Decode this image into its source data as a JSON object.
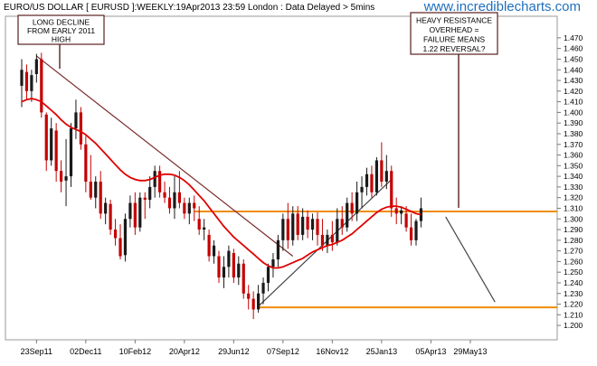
{
  "chart_data": {
    "type": "candlestick",
    "title": "EURO/US DOLLAR [ EURUSD ]:WEEKLY:19Apr2013 23:59 London : Data Delayed > 5mins",
    "watermark": "www.incrediblecharts.com",
    "x_ticks": [
      {
        "label": "23Sep11",
        "i": 3
      },
      {
        "label": "02Dec11",
        "i": 13
      },
      {
        "label": "10Feb12",
        "i": 23
      },
      {
        "label": "20Apr12",
        "i": 33
      },
      {
        "label": "29Jun12",
        "i": 43
      },
      {
        "label": "07Sep12",
        "i": 53
      },
      {
        "label": "16Nov12",
        "i": 63
      },
      {
        "label": "25Jan13",
        "i": 73
      },
      {
        "label": "05Apr13",
        "i": 83
      },
      {
        "label": "29May13",
        "i": 91
      }
    ],
    "y_ticks": [
      "1.200",
      "1.210",
      "1.220",
      "1.230",
      "1.240",
      "1.250",
      "1.260",
      "1.270",
      "1.280",
      "1.290",
      "1.300",
      "1.310",
      "1.320",
      "1.330",
      "1.340",
      "1.350",
      "1.360",
      "1.370",
      "1.380",
      "1.390",
      "1.400",
      "1.410",
      "1.420",
      "1.430",
      "1.440",
      "1.450",
      "1.460",
      "1.470"
    ],
    "ylim": [
      1.195,
      1.475
    ],
    "candles": [
      {
        "o": 1.425,
        "h": 1.45,
        "l": 1.405,
        "c": 1.44
      },
      {
        "o": 1.438,
        "h": 1.445,
        "l": 1.412,
        "c": 1.42
      },
      {
        "o": 1.42,
        "h": 1.44,
        "l": 1.41,
        "c": 1.435
      },
      {
        "o": 1.436,
        "h": 1.455,
        "l": 1.428,
        "c": 1.45
      },
      {
        "o": 1.45,
        "h": 1.456,
        "l": 1.395,
        "c": 1.4
      },
      {
        "o": 1.398,
        "h": 1.4,
        "l": 1.345,
        "c": 1.355
      },
      {
        "o": 1.355,
        "h": 1.395,
        "l": 1.35,
        "c": 1.385
      },
      {
        "o": 1.383,
        "h": 1.39,
        "l": 1.335,
        "c": 1.345
      },
      {
        "o": 1.345,
        "h": 1.355,
        "l": 1.325,
        "c": 1.335
      },
      {
        "o": 1.336,
        "h": 1.375,
        "l": 1.312,
        "c": 1.34
      },
      {
        "o": 1.34,
        "h": 1.39,
        "l": 1.33,
        "c": 1.385
      },
      {
        "o": 1.385,
        "h": 1.412,
        "l": 1.375,
        "c": 1.4
      },
      {
        "o": 1.4,
        "h": 1.405,
        "l": 1.365,
        "c": 1.37
      },
      {
        "o": 1.37,
        "h": 1.378,
        "l": 1.325,
        "c": 1.335
      },
      {
        "o": 1.335,
        "h": 1.36,
        "l": 1.318,
        "c": 1.32
      },
      {
        "o": 1.32,
        "h": 1.34,
        "l": 1.31,
        "c": 1.335
      },
      {
        "o": 1.335,
        "h": 1.345,
        "l": 1.3,
        "c": 1.305
      },
      {
        "o": 1.305,
        "h": 1.32,
        "l": 1.295,
        "c": 1.315
      },
      {
        "o": 1.314,
        "h": 1.318,
        "l": 1.285,
        "c": 1.29
      },
      {
        "o": 1.29,
        "h": 1.3,
        "l": 1.275,
        "c": 1.282
      },
      {
        "o": 1.282,
        "h": 1.295,
        "l": 1.262,
        "c": 1.265
      },
      {
        "o": 1.266,
        "h": 1.305,
        "l": 1.26,
        "c": 1.3
      },
      {
        "o": 1.3,
        "h": 1.322,
        "l": 1.292,
        "c": 1.315
      },
      {
        "o": 1.315,
        "h": 1.325,
        "l": 1.285,
        "c": 1.292
      },
      {
        "o": 1.292,
        "h": 1.325,
        "l": 1.288,
        "c": 1.32
      },
      {
        "o": 1.32,
        "h": 1.325,
        "l": 1.3,
        "c": 1.318
      },
      {
        "o": 1.318,
        "h": 1.34,
        "l": 1.31,
        "c": 1.33
      },
      {
        "o": 1.33,
        "h": 1.35,
        "l": 1.32,
        "c": 1.345
      },
      {
        "o": 1.345,
        "h": 1.35,
        "l": 1.32,
        "c": 1.325
      },
      {
        "o": 1.325,
        "h": 1.335,
        "l": 1.315,
        "c": 1.32
      },
      {
        "o": 1.32,
        "h": 1.33,
        "l": 1.305,
        "c": 1.31
      },
      {
        "o": 1.31,
        "h": 1.34,
        "l": 1.3,
        "c": 1.325
      },
      {
        "o": 1.325,
        "h": 1.345,
        "l": 1.31,
        "c": 1.315
      },
      {
        "o": 1.315,
        "h": 1.32,
        "l": 1.3,
        "c": 1.305
      },
      {
        "o": 1.305,
        "h": 1.32,
        "l": 1.295,
        "c": 1.315
      },
      {
        "o": 1.315,
        "h": 1.322,
        "l": 1.298,
        "c": 1.31
      },
      {
        "o": 1.3,
        "h": 1.312,
        "l": 1.285,
        "c": 1.29
      },
      {
        "o": 1.29,
        "h": 1.3,
        "l": 1.28,
        "c": 1.292
      },
      {
        "o": 1.285,
        "h": 1.29,
        "l": 1.26,
        "c": 1.265
      },
      {
        "o": 1.265,
        "h": 1.28,
        "l": 1.258,
        "c": 1.275
      },
      {
        "o": 1.265,
        "h": 1.27,
        "l": 1.24,
        "c": 1.245
      },
      {
        "o": 1.245,
        "h": 1.265,
        "l": 1.235,
        "c": 1.255
      },
      {
        "o": 1.255,
        "h": 1.275,
        "l": 1.245,
        "c": 1.27
      },
      {
        "o": 1.268,
        "h": 1.272,
        "l": 1.24,
        "c": 1.245
      },
      {
        "o": 1.245,
        "h": 1.265,
        "l": 1.238,
        "c": 1.258
      },
      {
        "o": 1.258,
        "h": 1.262,
        "l": 1.225,
        "c": 1.23
      },
      {
        "o": 1.23,
        "h": 1.238,
        "l": 1.215,
        "c": 1.225
      },
      {
        "o": 1.225,
        "h": 1.232,
        "l": 1.206,
        "c": 1.215
      },
      {
        "o": 1.215,
        "h": 1.238,
        "l": 1.212,
        "c": 1.23
      },
      {
        "o": 1.23,
        "h": 1.245,
        "l": 1.22,
        "c": 1.24
      },
      {
        "o": 1.24,
        "h": 1.258,
        "l": 1.232,
        "c": 1.255
      },
      {
        "o": 1.255,
        "h": 1.268,
        "l": 1.245,
        "c": 1.262
      },
      {
        "o": 1.262,
        "h": 1.285,
        "l": 1.255,
        "c": 1.28
      },
      {
        "o": 1.28,
        "h": 1.305,
        "l": 1.27,
        "c": 1.3
      },
      {
        "o": 1.3,
        "h": 1.315,
        "l": 1.272,
        "c": 1.28
      },
      {
        "o": 1.28,
        "h": 1.312,
        "l": 1.275,
        "c": 1.305
      },
      {
        "o": 1.305,
        "h": 1.312,
        "l": 1.28,
        "c": 1.285
      },
      {
        "o": 1.285,
        "h": 1.31,
        "l": 1.28,
        "c": 1.302
      },
      {
        "o": 1.302,
        "h": 1.308,
        "l": 1.282,
        "c": 1.29
      },
      {
        "o": 1.29,
        "h": 1.305,
        "l": 1.28,
        "c": 1.3
      },
      {
        "o": 1.3,
        "h": 1.306,
        "l": 1.275,
        "c": 1.285
      },
      {
        "o": 1.285,
        "h": 1.3,
        "l": 1.27,
        "c": 1.275
      },
      {
        "o": 1.275,
        "h": 1.29,
        "l": 1.268,
        "c": 1.285
      },
      {
        "o": 1.285,
        "h": 1.298,
        "l": 1.27,
        "c": 1.278
      },
      {
        "o": 1.278,
        "h": 1.31,
        "l": 1.275,
        "c": 1.3
      },
      {
        "o": 1.3,
        "h": 1.312,
        "l": 1.285,
        "c": 1.292
      },
      {
        "o": 1.292,
        "h": 1.32,
        "l": 1.288,
        "c": 1.315
      },
      {
        "o": 1.315,
        "h": 1.325,
        "l": 1.298,
        "c": 1.305
      },
      {
        "o": 1.305,
        "h": 1.335,
        "l": 1.298,
        "c": 1.325
      },
      {
        "o": 1.325,
        "h": 1.34,
        "l": 1.31,
        "c": 1.33
      },
      {
        "o": 1.33,
        "h": 1.348,
        "l": 1.322,
        "c": 1.342
      },
      {
        "o": 1.342,
        "h": 1.35,
        "l": 1.32,
        "c": 1.325
      },
      {
        "o": 1.325,
        "h": 1.358,
        "l": 1.322,
        "c": 1.355
      },
      {
        "o": 1.355,
        "h": 1.372,
        "l": 1.33,
        "c": 1.335
      },
      {
        "o": 1.335,
        "h": 1.36,
        "l": 1.328,
        "c": 1.345
      },
      {
        "o": 1.345,
        "h": 1.35,
        "l": 1.302,
        "c": 1.31
      },
      {
        "o": 1.31,
        "h": 1.32,
        "l": 1.295,
        "c": 1.305
      },
      {
        "o": 1.305,
        "h": 1.312,
        "l": 1.295,
        "c": 1.308
      },
      {
        "o": 1.305,
        "h": 1.312,
        "l": 1.288,
        "c": 1.292
      },
      {
        "o": 1.292,
        "h": 1.305,
        "l": 1.275,
        "c": 1.28
      },
      {
        "o": 1.28,
        "h": 1.3,
        "l": 1.275,
        "c": 1.298
      },
      {
        "o": 1.298,
        "h": 1.32,
        "l": 1.292,
        "c": 1.31
      }
    ],
    "moving_average": [
      1.41,
      1.412,
      1.413,
      1.412,
      1.41,
      1.406,
      1.402,
      1.398,
      1.393,
      1.389,
      1.386,
      1.384,
      1.382,
      1.379,
      1.375,
      1.371,
      1.366,
      1.361,
      1.356,
      1.351,
      1.346,
      1.342,
      1.339,
      1.337,
      1.336,
      1.336,
      1.337,
      1.339,
      1.341,
      1.342,
      1.342,
      1.341,
      1.339,
      1.336,
      1.332,
      1.327,
      1.322,
      1.317,
      1.311,
      1.305,
      1.299,
      1.293,
      1.288,
      1.283,
      1.279,
      1.275,
      1.271,
      1.267,
      1.263,
      1.259,
      1.256,
      1.254,
      1.254,
      1.255,
      1.257,
      1.259,
      1.261,
      1.263,
      1.266,
      1.269,
      1.271,
      1.273,
      1.275,
      1.276,
      1.278,
      1.28,
      1.283,
      1.286,
      1.29,
      1.294,
      1.298,
      1.302,
      1.306,
      1.309,
      1.311,
      1.312,
      1.312,
      1.311,
      1.309,
      1.307,
      1.305,
      1.304
    ],
    "support_lines": [
      {
        "y": 1.307,
        "i_start": 35,
        "i_end": 120,
        "color": "#f08c00"
      },
      {
        "y": 1.217,
        "i_start": 48,
        "i_end": 120,
        "color": "#f08c00"
      }
    ],
    "trend_lines": [
      {
        "from": {
          "i": 3,
          "y": 1.453
        },
        "to": {
          "i": 55,
          "y": 1.265
        },
        "color": "#7a2a2a"
      },
      {
        "from": {
          "i": 48,
          "y": 1.218
        },
        "to": {
          "i": 75,
          "y": 1.337
        },
        "color": "#444444"
      },
      {
        "from": {
          "i": 86,
          "y": 1.302
        },
        "to": {
          "i": 96,
          "y": 1.222
        },
        "color": "#444444"
      }
    ],
    "annotations": [
      {
        "text": [
          "LONG DECLINE",
          "FROM EARLY 2011",
          "HIGH"
        ],
        "pointer": {
          "i": 7,
          "y": 1.437
        }
      },
      {
        "text": [
          "HEAVY RESISTANCE",
          "OVERHEAD =",
          "FAILURE MEANS",
          "1.22 REVERSAL?"
        ],
        "pointer": {
          "i": 84,
          "y": 1.31
        }
      }
    ],
    "colors": {
      "up": "#1a1a1a",
      "down": "#c40000",
      "ma": "#e00000",
      "watermark": "#1f6fbf"
    }
  }
}
